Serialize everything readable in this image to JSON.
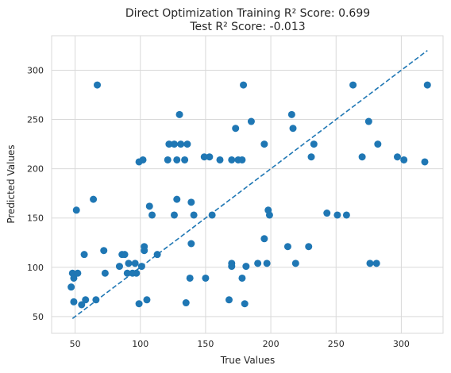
{
  "chart_data": {
    "type": "scatter",
    "title": "Direct Optimization Training R² Score: 0.699",
    "subtitle": "Test R² Score: -0.013",
    "xlabel": "True Values",
    "ylabel": "Predicted Values",
    "xlim": [
      32,
      332
    ],
    "ylim": [
      33,
      335
    ],
    "xticks": [
      50,
      100,
      150,
      200,
      250,
      300
    ],
    "yticks": [
      50,
      100,
      150,
      200,
      250,
      300
    ],
    "grid": true,
    "colors": {
      "points": "#1f77b4",
      "line": "#1f77b4",
      "grid": "#d9d9d9"
    },
    "reference_line": {
      "style": "dashed",
      "x": [
        48,
        320
      ],
      "y": [
        48,
        320
      ]
    },
    "points": [
      [
        47,
        80
      ],
      [
        48,
        94
      ],
      [
        49,
        65
      ],
      [
        49,
        89
      ],
      [
        51,
        158
      ],
      [
        52,
        94
      ],
      [
        55,
        62
      ],
      [
        57,
        113
      ],
      [
        58,
        67
      ],
      [
        64,
        169
      ],
      [
        66,
        67
      ],
      [
        67,
        285
      ],
      [
        72,
        117
      ],
      [
        73,
        94
      ],
      [
        84,
        101
      ],
      [
        86,
        113
      ],
      [
        88,
        113
      ],
      [
        90,
        94
      ],
      [
        91,
        104
      ],
      [
        94,
        94
      ],
      [
        96,
        104
      ],
      [
        97,
        94
      ],
      [
        99,
        63
      ],
      [
        99,
        207
      ],
      [
        101,
        101
      ],
      [
        102,
        209
      ],
      [
        103,
        121
      ],
      [
        103,
        117
      ],
      [
        105,
        67
      ],
      [
        107,
        162
      ],
      [
        109,
        153
      ],
      [
        113,
        113
      ],
      [
        121,
        209
      ],
      [
        122,
        225
      ],
      [
        126,
        153
      ],
      [
        126,
        225
      ],
      [
        128,
        169
      ],
      [
        128,
        209
      ],
      [
        130,
        255
      ],
      [
        131,
        225
      ],
      [
        134,
        209
      ],
      [
        135,
        64
      ],
      [
        136,
        225
      ],
      [
        138,
        89
      ],
      [
        139,
        166
      ],
      [
        139,
        124
      ],
      [
        141,
        153
      ],
      [
        149,
        212
      ],
      [
        150,
        89
      ],
      [
        153,
        212
      ],
      [
        155,
        153
      ],
      [
        161,
        209
      ],
      [
        168,
        67
      ],
      [
        170,
        104
      ],
      [
        170,
        101
      ],
      [
        170,
        209
      ],
      [
        173,
        241
      ],
      [
        175,
        209
      ],
      [
        178,
        209
      ],
      [
        178,
        89
      ],
      [
        179,
        285
      ],
      [
        180,
        63
      ],
      [
        181,
        101
      ],
      [
        185,
        248
      ],
      [
        190,
        104
      ],
      [
        195,
        225
      ],
      [
        195,
        129
      ],
      [
        197,
        104
      ],
      [
        198,
        158
      ],
      [
        199,
        153
      ],
      [
        213,
        121
      ],
      [
        216,
        255
      ],
      [
        217,
        241
      ],
      [
        219,
        104
      ],
      [
        229,
        121
      ],
      [
        231,
        212
      ],
      [
        233,
        225
      ],
      [
        243,
        155
      ],
      [
        251,
        153
      ],
      [
        258,
        153
      ],
      [
        263,
        285
      ],
      [
        270,
        212
      ],
      [
        275,
        248
      ],
      [
        276,
        104
      ],
      [
        281,
        104
      ],
      [
        282,
        225
      ],
      [
        297,
        212
      ],
      [
        302,
        209
      ],
      [
        318,
        207
      ],
      [
        320,
        285
      ]
    ]
  }
}
